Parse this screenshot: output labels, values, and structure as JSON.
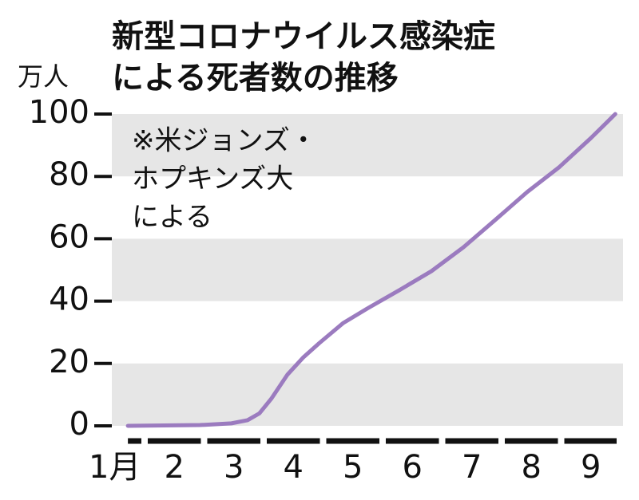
{
  "chart_data": {
    "type": "line",
    "title": [
      "新型コロナウイルス感染症",
      "による死者数の推移"
    ],
    "y_label": "万人",
    "annotation": [
      "※米ジョンズ・",
      "ホプキンズ大",
      "による"
    ],
    "x": [
      1.72,
      2.93,
      3.46,
      3.73,
      3.93,
      4.13,
      4.4,
      4.67,
      4.94,
      5.34,
      5.74,
      6.28,
      6.82,
      7.36,
      7.89,
      8.43,
      8.97,
      9.5,
      9.91
    ],
    "series": [
      {
        "color": "#9b7bbf",
        "values": [
          0,
          0.25,
          0.8,
          1.8,
          4,
          8.7,
          16.4,
          22,
          26.6,
          33,
          37.6,
          43.5,
          49.6,
          57.3,
          66,
          75,
          83,
          92.3,
          100
        ]
      }
    ],
    "xlim": [
      1.45,
      10.04
    ],
    "xticks": [
      {
        "value": 1.5,
        "label": "1月"
      },
      {
        "value": 2.5,
        "label": "2"
      },
      {
        "value": 3.5,
        "label": "3"
      },
      {
        "value": 4.5,
        "label": "4"
      },
      {
        "value": 5.5,
        "label": "5"
      },
      {
        "value": 6.5,
        "label": "6"
      },
      {
        "value": 7.5,
        "label": "7"
      },
      {
        "value": 8.5,
        "label": "8"
      },
      {
        "value": 9.5,
        "label": "9"
      }
    ],
    "ylim": [
      0,
      100
    ],
    "yticks": [
      0,
      20,
      40,
      60,
      80,
      100
    ],
    "grid": "bands"
  }
}
